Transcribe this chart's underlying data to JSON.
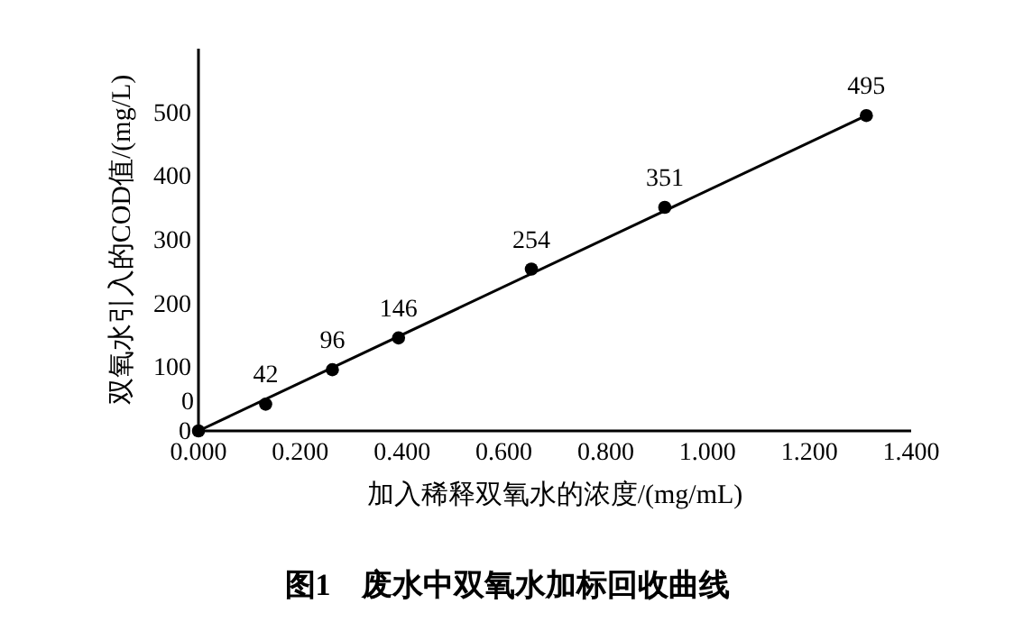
{
  "chart_data": {
    "type": "scatter",
    "title": "图1　废水中双氧水加标回收曲线",
    "xlabel": "加入稀释双氧水的浓度/(mg/mL)",
    "ylabel": "双氧水引入的COD值/(mg/L)",
    "x": [
      0,
      0.132,
      0.263,
      0.393,
      0.654,
      0.916,
      1.312
    ],
    "series": [
      {
        "color": "#000000",
        "marker": "circle",
        "values": [
          0,
          42,
          96,
          146,
          254,
          351,
          495
        ],
        "value_labels": [
          "0",
          "42",
          "96",
          "146",
          "254",
          "351",
          "495"
        ]
      },
      {
        "type": "line",
        "color": "#000000",
        "x": [
          0,
          1.312
        ],
        "values": [
          0,
          495
        ]
      }
    ],
    "grid": false,
    "xlim": [
      0,
      1.4
    ],
    "xticks": [
      {
        "value": 0,
        "label": "0.000"
      },
      {
        "value": 0.2,
        "label": "0.200"
      },
      {
        "value": 0.4,
        "label": "0.400"
      },
      {
        "value": 0.6,
        "label": "0.600"
      },
      {
        "value": 0.8,
        "label": "0.800"
      },
      {
        "value": 1,
        "label": "1.000"
      },
      {
        "value": 1.2,
        "label": "1.200"
      },
      {
        "value": 1.4,
        "label": "1.400"
      }
    ],
    "ylim": [
      0,
      600
    ],
    "yticks": [
      0,
      100,
      200,
      300,
      400,
      500
    ]
  }
}
